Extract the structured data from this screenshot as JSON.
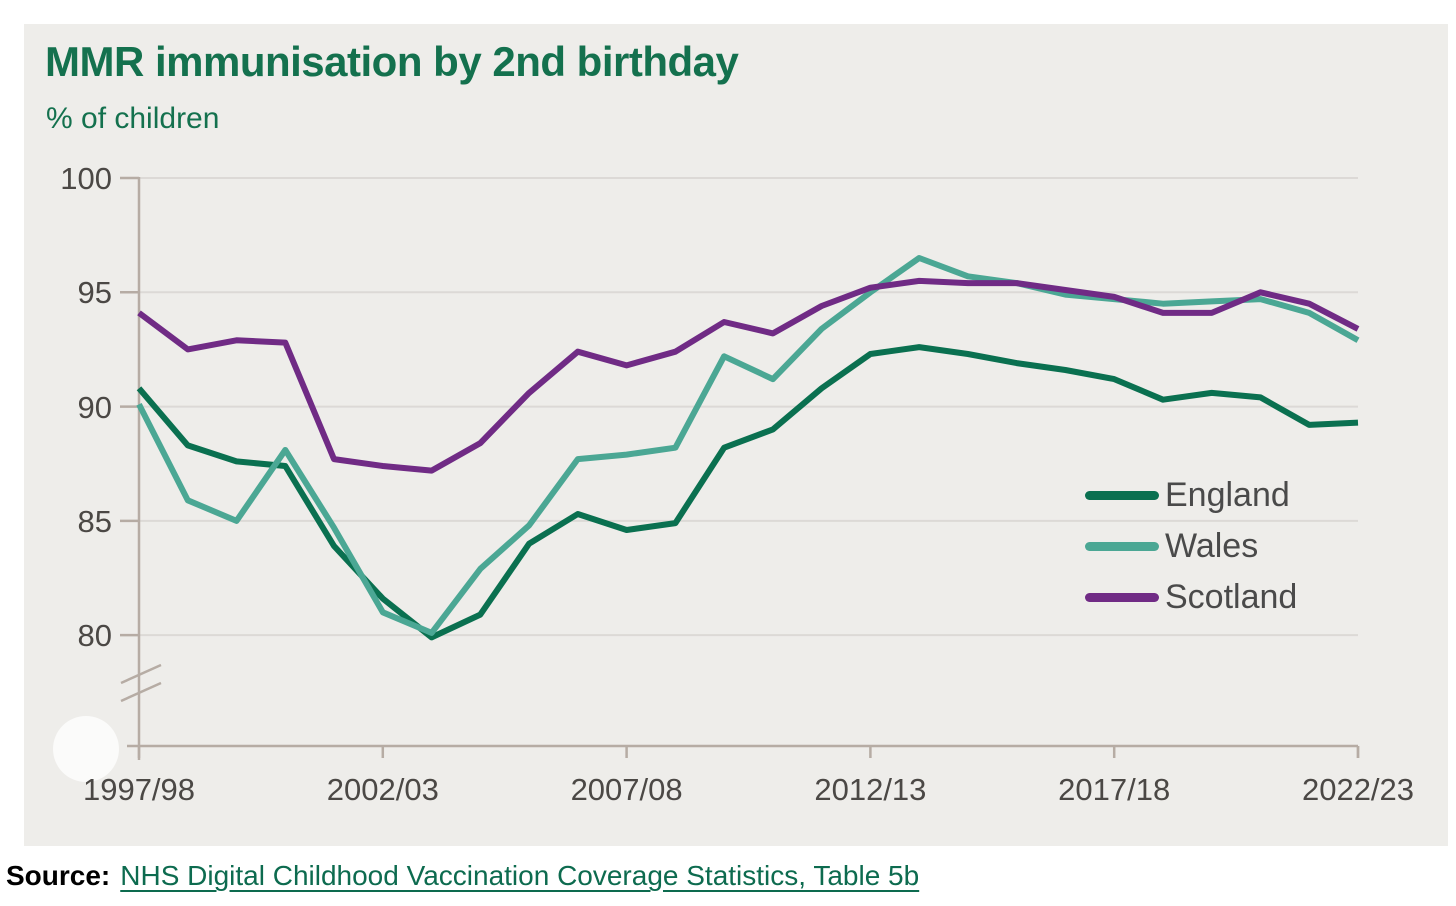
{
  "card": {
    "background": "#eeedea"
  },
  "chart": {
    "title": "MMR immunisation by 2nd birthday",
    "subtitle": "% of children",
    "title_color": "#14714e"
  },
  "chart_data": {
    "type": "line",
    "title": "MMR immunisation by 2nd birthday",
    "ylabel": "% of children",
    "categories": [
      "1997/98",
      "1998/99",
      "1999/00",
      "2000/01",
      "2001/02",
      "2002/03",
      "2003/04",
      "2004/05",
      "2005/06",
      "2006/07",
      "2007/08",
      "2008/09",
      "2009/10",
      "2010/11",
      "2011/12",
      "2012/13",
      "2013/14",
      "2014/15",
      "2015/16",
      "2016/17",
      "2017/18",
      "2018/19",
      "2019/20",
      "2020/21",
      "2021/22",
      "2022/23"
    ],
    "x_tick_labels": [
      "1997/98",
      "2002/03",
      "2007/08",
      "2012/13",
      "2017/18",
      "2022/23"
    ],
    "y_ticks": [
      100,
      95,
      90,
      85,
      80
    ],
    "ylim_display": [
      80,
      100
    ],
    "axis_break": true,
    "grid": "horizontal",
    "legend_position": "inside-right",
    "axis_color": "#b6aca4",
    "gridline_color": "#dcd9d6",
    "tick_label_color": "#4b4845",
    "series": [
      {
        "name": "England",
        "color": "#0a7050",
        "values": [
          90.8,
          88.3,
          87.6,
          87.4,
          83.9,
          81.6,
          79.9,
          80.9,
          84.0,
          85.3,
          84.6,
          84.9,
          88.2,
          89.0,
          90.8,
          92.3,
          92.6,
          92.3,
          91.9,
          91.6,
          91.2,
          90.3,
          90.6,
          90.4,
          89.2,
          89.3
        ]
      },
      {
        "name": "Wales",
        "color": "#4ba794",
        "values": [
          90.1,
          85.9,
          85.0,
          88.1,
          84.7,
          81.0,
          80.1,
          82.9,
          84.8,
          87.7,
          87.9,
          88.2,
          92.2,
          91.2,
          93.4,
          95.0,
          96.5,
          95.7,
          95.4,
          94.9,
          94.7,
          94.5,
          94.6,
          94.7,
          94.1,
          92.9
        ]
      },
      {
        "name": "Scotland",
        "color": "#702b85",
        "values": [
          94.1,
          92.5,
          92.9,
          92.8,
          87.7,
          87.4,
          87.2,
          88.4,
          90.6,
          92.4,
          91.8,
          92.4,
          93.7,
          93.2,
          94.4,
          95.2,
          95.5,
          95.4,
          95.4,
          95.1,
          94.8,
          94.1,
          94.1,
          95.0,
          94.5,
          93.4
        ]
      }
    ]
  },
  "source": {
    "label": "Source:",
    "link_text": "NHS Digital Childhood Vaccination Coverage Statistics, Table 5b",
    "link_color": "#0d6b4f"
  }
}
